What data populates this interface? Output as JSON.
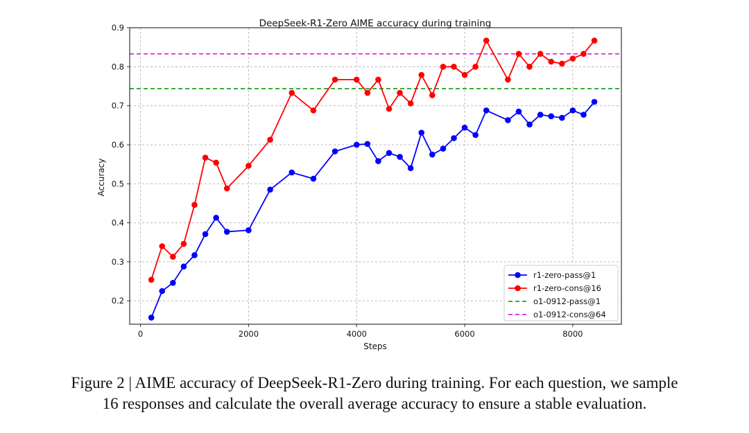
{
  "chart_data": {
    "type": "line",
    "title": "DeepSeek-R1-Zero AIME accuracy during training",
    "xlabel": "Steps",
    "ylabel": "Accuracy",
    "xlim": [
      -200,
      8900
    ],
    "ylim": [
      0.14,
      0.9
    ],
    "xticks": [
      0,
      2000,
      4000,
      6000,
      8000
    ],
    "yticks": [
      0.2,
      0.3,
      0.4,
      0.5,
      0.6,
      0.7,
      0.8,
      0.9
    ],
    "grid": true,
    "legend_position": "bottom-right",
    "x": [
      200,
      400,
      600,
      800,
      1000,
      1200,
      1400,
      1600,
      2000,
      2400,
      2800,
      3200,
      3600,
      4000,
      4200,
      4400,
      4600,
      4800,
      5000,
      5200,
      5400,
      5600,
      5800,
      6000,
      6200,
      6400,
      6800,
      7000,
      7200,
      7400,
      7600,
      7800,
      8000,
      8200,
      8400
    ],
    "series": [
      {
        "name": "r1-zero-pass@1",
        "color": "#0000ff",
        "style": "line-marker",
        "values": [
          0.157,
          0.225,
          0.246,
          0.288,
          0.317,
          0.371,
          0.413,
          0.377,
          0.381,
          0.485,
          0.529,
          0.513,
          0.583,
          0.6,
          0.602,
          0.558,
          0.579,
          0.569,
          0.54,
          0.631,
          0.575,
          0.59,
          0.617,
          0.644,
          0.625,
          0.688,
          0.663,
          0.685,
          0.652,
          0.677,
          0.673,
          0.669,
          0.688,
          0.677,
          0.71
        ]
      },
      {
        "name": "r1-zero-cons@16",
        "color": "#ff0000",
        "style": "line-marker",
        "values": [
          0.254,
          0.34,
          0.313,
          0.346,
          0.446,
          0.567,
          0.554,
          0.488,
          0.546,
          0.613,
          0.733,
          0.688,
          0.767,
          0.767,
          0.733,
          0.767,
          0.692,
          0.733,
          0.706,
          0.779,
          0.727,
          0.8,
          0.8,
          0.779,
          0.8,
          0.867,
          0.767,
          0.833,
          0.8,
          0.833,
          0.813,
          0.808,
          0.821,
          0.833,
          0.867
        ]
      },
      {
        "name": "o1-0912-pass@1",
        "color": "#22a022",
        "style": "hline-dashed",
        "value": 0.744
      },
      {
        "name": "o1-0912-cons@64",
        "color": "#dd22dd",
        "style": "hline-dashed",
        "value": 0.833
      }
    ]
  },
  "caption": {
    "line1": "Figure 2 | AIME accuracy of DeepSeek-R1-Zero during training. For each question, we sample",
    "line2": "16 responses and calculate the overall average accuracy to ensure a stable evaluation."
  }
}
